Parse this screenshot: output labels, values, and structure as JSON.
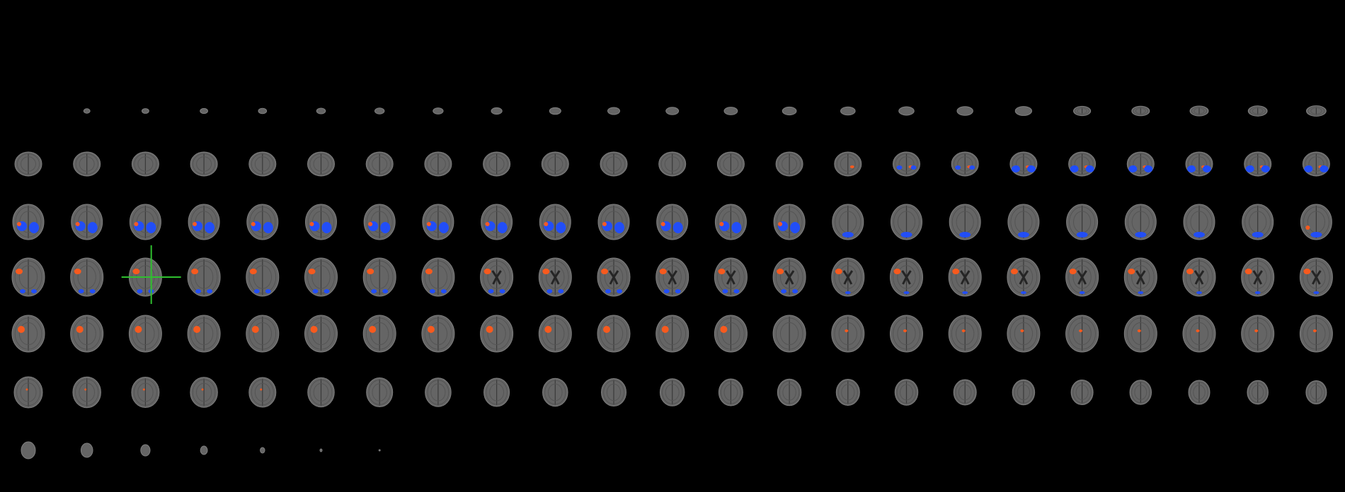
{
  "viewer": {
    "mode": "axial-mosaic",
    "rows": 7,
    "columns": 23,
    "crosshair_color": "#2fbf2f",
    "background_color": "#000000",
    "anatomy_color": "#6e6e6e",
    "overlay_positive_color": "#ff5a1a",
    "overlay_negative_color": "#1f4dff",
    "selected_tile": {
      "row": 4,
      "column": 3
    }
  }
}
